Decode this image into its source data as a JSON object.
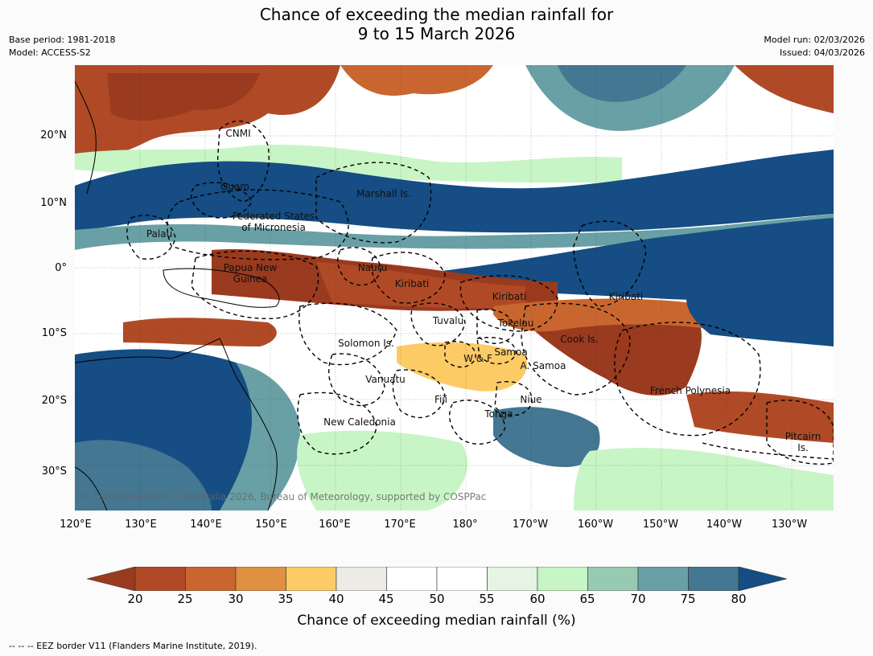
{
  "title_line1": "Chance of exceeding the median rainfall for",
  "title_line2": "9 to 15 March 2026",
  "header_left": {
    "base_period": "Base period: 1981-2018",
    "model": "Model: ACCESS-S2"
  },
  "header_right": {
    "model_run": "Model run: 02/03/2026",
    "issued": "Issued: 04/03/2026"
  },
  "map": {
    "copyright": "© Commonwealth of Australia 2026, Bureau of Meteorology, supported by COSPPac",
    "lat_labels": [
      "20°N",
      "10°N",
      "0°",
      "10°S",
      "20°S",
      "30°S"
    ],
    "lon_labels": [
      "120°E",
      "130°E",
      "140°E",
      "150°E",
      "160°E",
      "170°E",
      "180°",
      "170°W",
      "160°W",
      "150°W",
      "140°W",
      "130°W"
    ],
    "region_labels": {
      "cnmi": "CNMI",
      "guam": "Guam",
      "marshall": "Marshall Is.",
      "fsm": "Federated States\nof Micronesia",
      "palau": "Palau",
      "png": "Papua New\nGuinea",
      "nauru": "Nauru",
      "kiribati_w": "Kiribati",
      "kiribati_c": "Kiribati",
      "kiribati_e": "Kiribati",
      "tuvalu": "Tuvalu",
      "tokelau": "Tokelau",
      "solomon": "Solomon Is.",
      "cook": "Cook Is.",
      "samoa": "Samoa",
      "wf": "W & F",
      "asamoa": "A. Samoa",
      "vanuatu": "Vanuatu",
      "fiji": "Fiji",
      "niue": "Niue",
      "frpoly": "French Polynesia",
      "tonga": "Tonga",
      "newcal": "New Caledonia",
      "pitcairn": "Pitcairn\nIs."
    }
  },
  "colorbar": {
    "label": "Chance of exceeding median rainfall (%)",
    "ticks": [
      "20",
      "25",
      "30",
      "35",
      "40",
      "45",
      "50",
      "55",
      "60",
      "65",
      "70",
      "75",
      "80"
    ],
    "colors": [
      "#9a3a1f",
      "#b04a26",
      "#c9662f",
      "#df9040",
      "#fccb66",
      "#ecebe6",
      "#ffffff",
      "#ffffff",
      "#e6f4e4",
      "#c8f5c5",
      "#98cab2",
      "#68a0a5",
      "#437792",
      "#154d84"
    ]
  },
  "footer": "-- -- -- EEZ border V11 (Flanders Marine Institute, 2019)."
}
